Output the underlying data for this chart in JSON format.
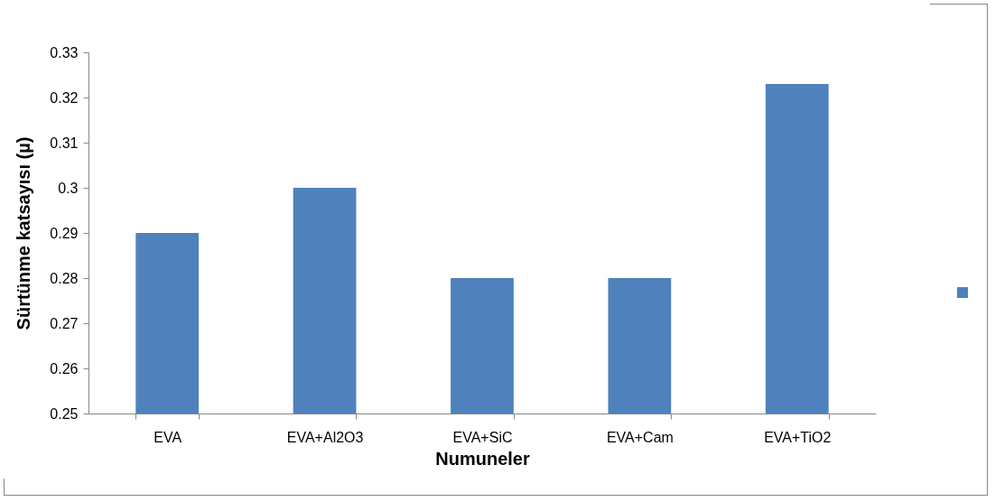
{
  "chart_data": {
    "type": "bar",
    "xlabel": "Numuneler",
    "ylabel": "Sürtünme katsayısı (µ)",
    "categories": [
      "EVA",
      "EVA+Al2O3",
      "EVA+SiC",
      "EVA+Cam",
      "EVA+TiO2"
    ],
    "series": [
      {
        "color": "#4f81bd",
        "values": [
          0.29,
          0.3,
          0.28,
          0.28,
          0.323
        ]
      }
    ],
    "ylim": [
      0.25,
      0.33
    ],
    "yticks": [
      0.25,
      0.26,
      0.27,
      0.28,
      0.29,
      0.3,
      0.31,
      0.32,
      0.33
    ],
    "grid": false
  }
}
